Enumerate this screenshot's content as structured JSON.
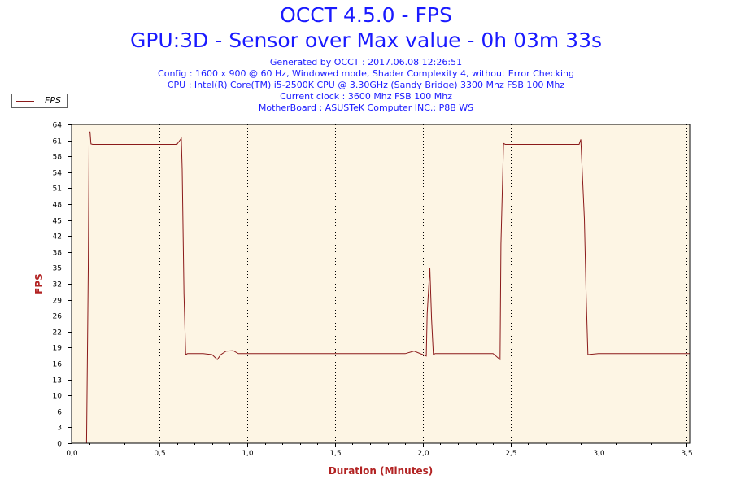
{
  "header": {
    "title": "OCCT 4.5.0 - FPS",
    "subtitle": "GPU:3D - Sensor over Max value - 0h 03m 33s",
    "info_lines": [
      "Generated by OCCT : 2017.06.08 12:26:51",
      "Config : 1600 x 900 @ 60 Hz, Windowed mode, Shader Complexity 4, without Error Checking",
      "CPU : Intel(R) Core(TM) i5-2500K CPU @ 3.30GHz (Sandy Bridge) 3300 Mhz FSB 100 Mhz",
      "Current clock : 3600 Mhz FSB 100 Mhz",
      "MotherBoard : ASUSTeK Computer INC.: P8B WS"
    ]
  },
  "colors": {
    "title": "#1a1aff",
    "plot_background": "#fdf5e4",
    "series_line": "#8b1a1a",
    "axis_label": "#b22222",
    "grid": "#000000"
  },
  "chart_data": {
    "type": "line",
    "title": "OCCT 4.5.0 - FPS",
    "xlabel": "Duration (Minutes)",
    "ylabel": "FPS",
    "xlim": [
      0,
      3.52
    ],
    "ylim": [
      0,
      64
    ],
    "x_ticks": [
      "0,0",
      "0,5",
      "1,0",
      "1,5",
      "2,0",
      "2,5",
      "3,0",
      "3,5"
    ],
    "x_tick_values": [
      0,
      0.5,
      1.0,
      1.5,
      2.0,
      2.5,
      3.0,
      3.5
    ],
    "y_ticks": [
      "0",
      "3",
      "6",
      "10",
      "13",
      "16",
      "19",
      "22",
      "26",
      "29",
      "32",
      "35",
      "38",
      "42",
      "45",
      "48",
      "51",
      "54",
      "58",
      "61",
      "64"
    ],
    "y_tick_values": [
      0,
      3.2,
      6.4,
      9.6,
      12.8,
      16,
      19.2,
      22.4,
      25.6,
      28.8,
      32,
      35.2,
      38.4,
      41.6,
      44.8,
      48,
      51.2,
      54.4,
      57.6,
      60.8,
      64
    ],
    "grid": "vertical dotted",
    "legend": "top-left",
    "series": [
      {
        "name": "FPS",
        "x": [
          0.08,
          0.085,
          0.095,
          0.1,
          0.105,
          0.11,
          0.12,
          0.2,
          0.3,
          0.4,
          0.5,
          0.6,
          0.625,
          0.63,
          0.64,
          0.65,
          0.66,
          0.7,
          0.75,
          0.8,
          0.83,
          0.85,
          0.88,
          0.92,
          0.95,
          1.0,
          1.1,
          1.2,
          1.3,
          1.4,
          1.5,
          1.6,
          1.7,
          1.8,
          1.9,
          1.95,
          2.0,
          2.02,
          2.025,
          2.04,
          2.05,
          2.06,
          2.07,
          2.1,
          2.2,
          2.3,
          2.4,
          2.44,
          2.445,
          2.46,
          2.47,
          2.6,
          2.7,
          2.8,
          2.89,
          2.9,
          2.92,
          2.93,
          2.94,
          3.0,
          3.1,
          3.2,
          3.3,
          3.4,
          3.5,
          3.52
        ],
        "values": [
          0,
          0,
          35,
          62.5,
          62.5,
          60.1,
          60,
          60,
          60,
          60,
          60,
          60,
          61.2,
          55,
          30,
          17.8,
          18,
          18,
          18,
          17.8,
          16.8,
          17.8,
          18.5,
          18.6,
          18,
          18,
          18,
          18,
          18,
          18,
          18,
          18,
          18,
          18,
          18,
          18.5,
          17.8,
          17.5,
          26,
          35.2,
          25,
          17.8,
          18,
          18,
          18,
          18,
          18,
          16.8,
          40,
          60.2,
          60,
          60,
          60,
          60,
          60,
          61,
          45,
          30,
          17.8,
          18,
          18,
          18,
          18,
          18,
          18,
          18
        ]
      }
    ]
  }
}
